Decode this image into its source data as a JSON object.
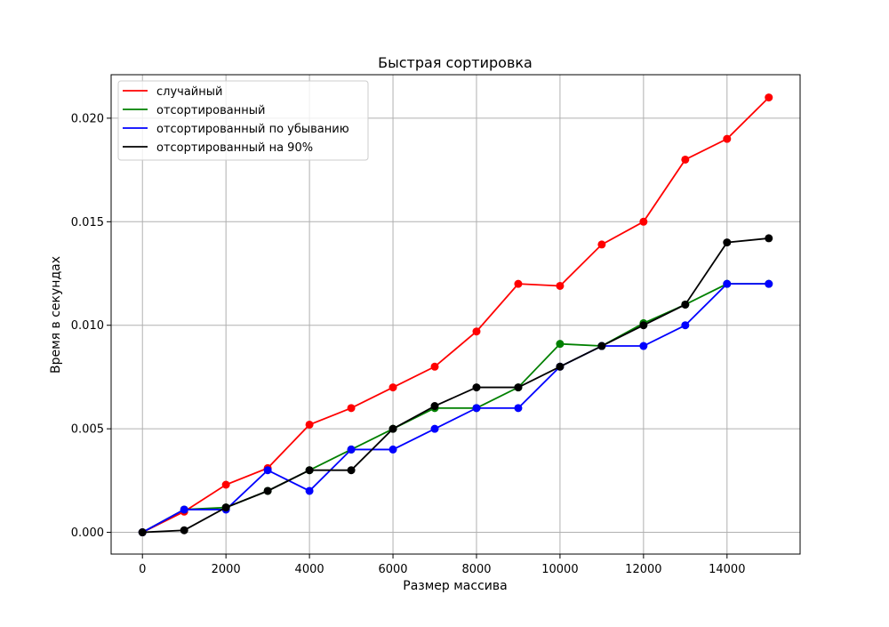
{
  "chart_data": {
    "type": "line",
    "title": "Быстрая сортировка",
    "xlabel": "Размер массива",
    "ylabel": "Время в секундах",
    "x": [
      0,
      1000,
      2000,
      3000,
      4000,
      5000,
      6000,
      7000,
      8000,
      9000,
      10000,
      11000,
      12000,
      13000,
      14000,
      15000
    ],
    "xlim": [
      -750,
      15750
    ],
    "ylim": [
      -0.00105,
      0.0221
    ],
    "xticks": [
      0,
      2000,
      4000,
      6000,
      8000,
      10000,
      12000,
      14000
    ],
    "xtick_labels": [
      "0",
      "2000",
      "4000",
      "6000",
      "8000",
      "10000",
      "12000",
      "14000"
    ],
    "yticks": [
      0.0,
      0.005,
      0.01,
      0.015,
      0.02
    ],
    "ytick_labels": [
      "0.000",
      "0.005",
      "0.010",
      "0.015",
      "0.020"
    ],
    "grid": true,
    "legend_position": "top-left",
    "series": [
      {
        "name": "случайный",
        "color": "#ff0000",
        "values": [
          0.0,
          0.001,
          0.0023,
          0.0031,
          0.0052,
          0.006,
          0.007,
          0.008,
          0.0097,
          0.012,
          0.0119,
          0.0139,
          0.015,
          0.018,
          0.019,
          0.021
        ]
      },
      {
        "name": "отсортированный",
        "color": "#008000",
        "values": [
          0.0,
          0.0011,
          0.0012,
          0.002,
          0.003,
          0.004,
          0.005,
          0.006,
          0.006,
          0.007,
          0.0091,
          0.009,
          0.0101,
          0.011,
          0.012,
          0.012
        ]
      },
      {
        "name": "отсортированный по убыванию",
        "color": "#0000ff",
        "values": [
          0.0,
          0.0011,
          0.0011,
          0.003,
          0.002,
          0.004,
          0.004,
          0.005,
          0.006,
          0.006,
          0.008,
          0.009,
          0.009,
          0.01,
          0.012,
          0.012
        ]
      },
      {
        "name": "отсортированный на 90%",
        "color": "#000000",
        "values": [
          0.0,
          0.0001,
          0.0012,
          0.002,
          0.003,
          0.003,
          0.005,
          0.0061,
          0.007,
          0.007,
          0.008,
          0.009,
          0.01,
          0.011,
          0.014,
          0.0142
        ]
      }
    ]
  }
}
